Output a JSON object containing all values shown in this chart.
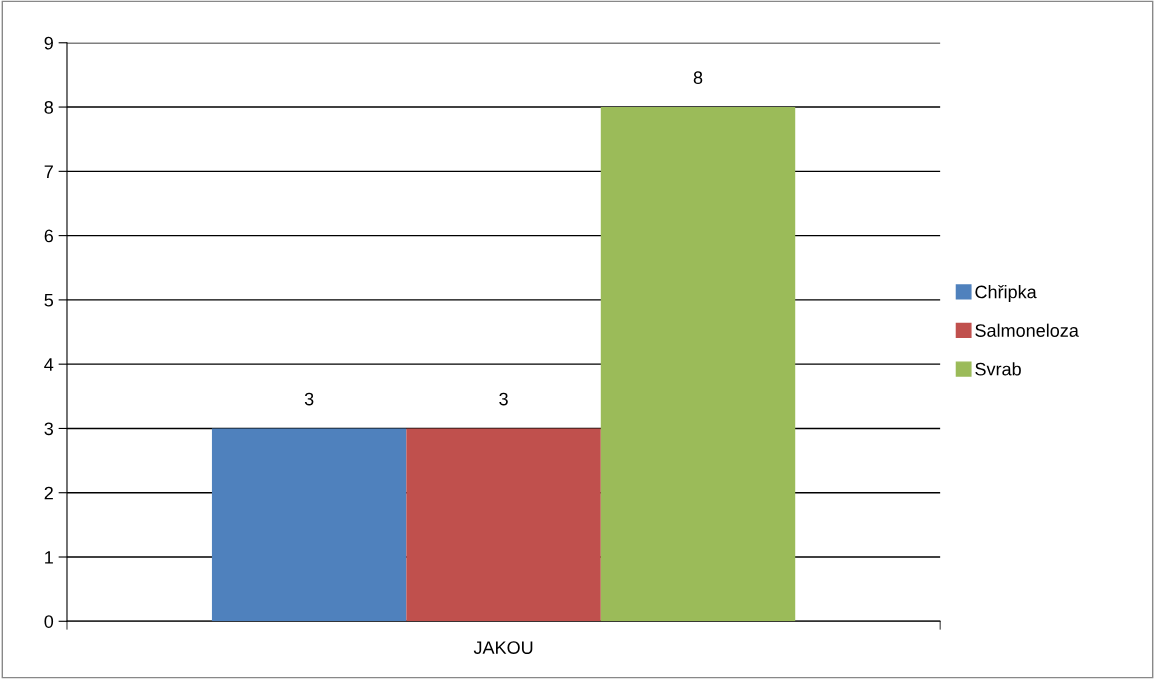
{
  "chart_data": {
    "type": "bar",
    "categories": [
      "JAKOU"
    ],
    "series": [
      {
        "name": "Chřipka",
        "color": "#4f81bd",
        "values": [
          3
        ]
      },
      {
        "name": "Salmoneloza",
        "color": "#c0504d",
        "values": [
          3
        ]
      },
      {
        "name": "Svrab",
        "color": "#9bbb59",
        "values": [
          8
        ]
      }
    ],
    "ylim": [
      0,
      9
    ],
    "yticks": [
      0,
      1,
      2,
      3,
      4,
      5,
      6,
      7,
      8,
      9
    ],
    "grid": "y",
    "legend": "right",
    "data_labels": true
  }
}
